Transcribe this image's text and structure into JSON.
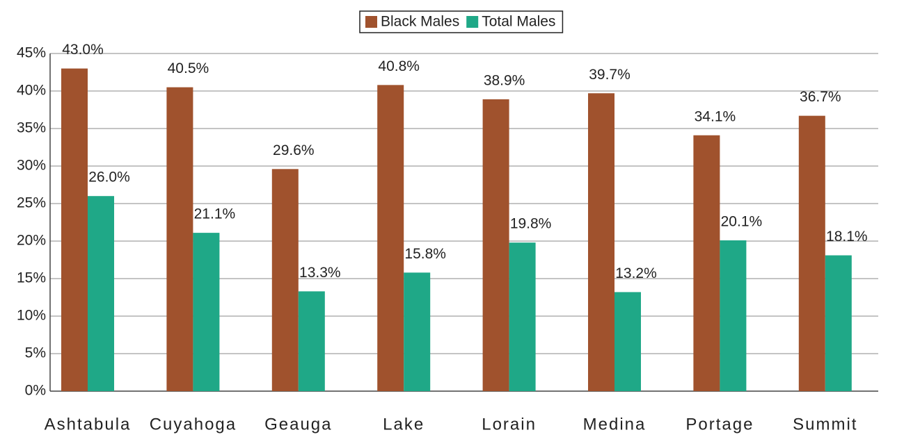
{
  "chart_data": {
    "type": "bar",
    "categories": [
      "Ashtabula",
      "Cuyahoga",
      "Geauga",
      "Lake",
      "Lorain",
      "Medina",
      "Portage",
      "Summit"
    ],
    "series": [
      {
        "name": "Black Males",
        "color": "#a0522d",
        "values": [
          43.0,
          40.5,
          29.6,
          40.8,
          38.9,
          39.7,
          34.1,
          36.7
        ],
        "value_labels": [
          "43.0%",
          "40.5%",
          "29.6%",
          "40.8%",
          "38.9%",
          "39.7%",
          "34.1%",
          "36.7%"
        ]
      },
      {
        "name": "Total Males",
        "color": "#1fa887",
        "values": [
          26.0,
          21.1,
          13.3,
          15.8,
          19.8,
          13.2,
          20.1,
          18.1
        ],
        "value_labels": [
          "26.0%",
          "21.1%",
          "13.3%",
          "15.8%",
          "19.8%",
          "13.2%",
          "20.1%",
          "18.1%"
        ]
      }
    ],
    "ylim": [
      0,
      45
    ],
    "yticks": [
      {
        "value": 0,
        "label": "0%"
      },
      {
        "value": 5,
        "label": "5%"
      },
      {
        "value": 10,
        "label": "10%"
      },
      {
        "value": 15,
        "label": "15%"
      },
      {
        "value": 20,
        "label": "20%"
      },
      {
        "value": 25,
        "label": "25%"
      },
      {
        "value": 30,
        "label": "30%"
      },
      {
        "value": 35,
        "label": "35%"
      },
      {
        "value": 40,
        "label": "40%"
      },
      {
        "value": 45,
        "label": "45%"
      }
    ],
    "grid": true,
    "legend": "top"
  }
}
